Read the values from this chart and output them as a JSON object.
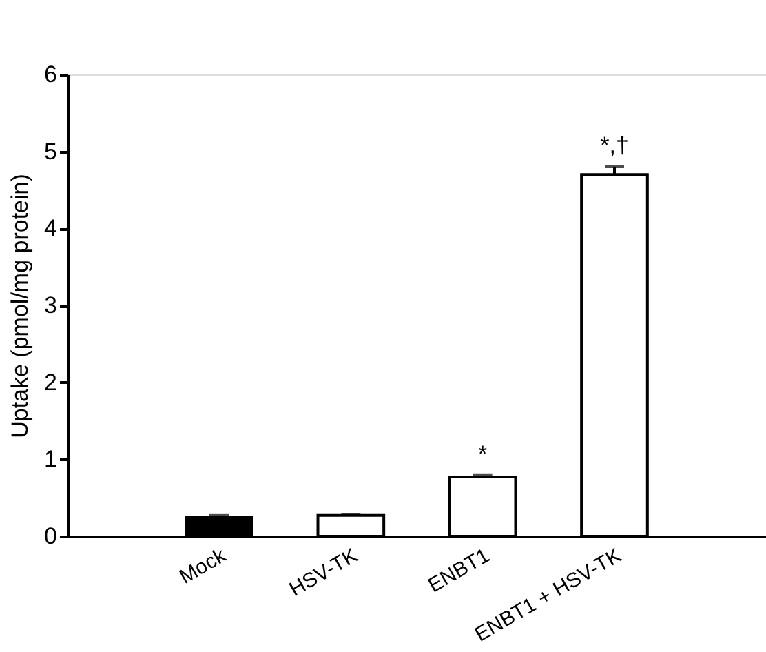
{
  "chart_data": {
    "type": "bar",
    "ylabel": "Uptake (pmol/mg protein)",
    "categories": [
      "Mock",
      "HSV-TK",
      "ENBT1",
      "ENBT1 + HSV-TK"
    ],
    "values": [
      0.25,
      0.27,
      0.77,
      4.7
    ],
    "errors": [
      0.02,
      0.01,
      0.02,
      0.1
    ],
    "colors": [
      "#000000",
      "#ffffff",
      "#ffffff",
      "#ffffff"
    ],
    "ylim": [
      0,
      6
    ],
    "yticks": [
      0,
      1,
      2,
      3,
      4,
      5,
      6
    ],
    "grid": false,
    "annotations": [
      {
        "text": "*",
        "x": "ENBT1",
        "y": 0.79
      },
      {
        "text": "*,†",
        "x": "ENBT1 + HSV-TK",
        "y": 4.8
      }
    ]
  }
}
